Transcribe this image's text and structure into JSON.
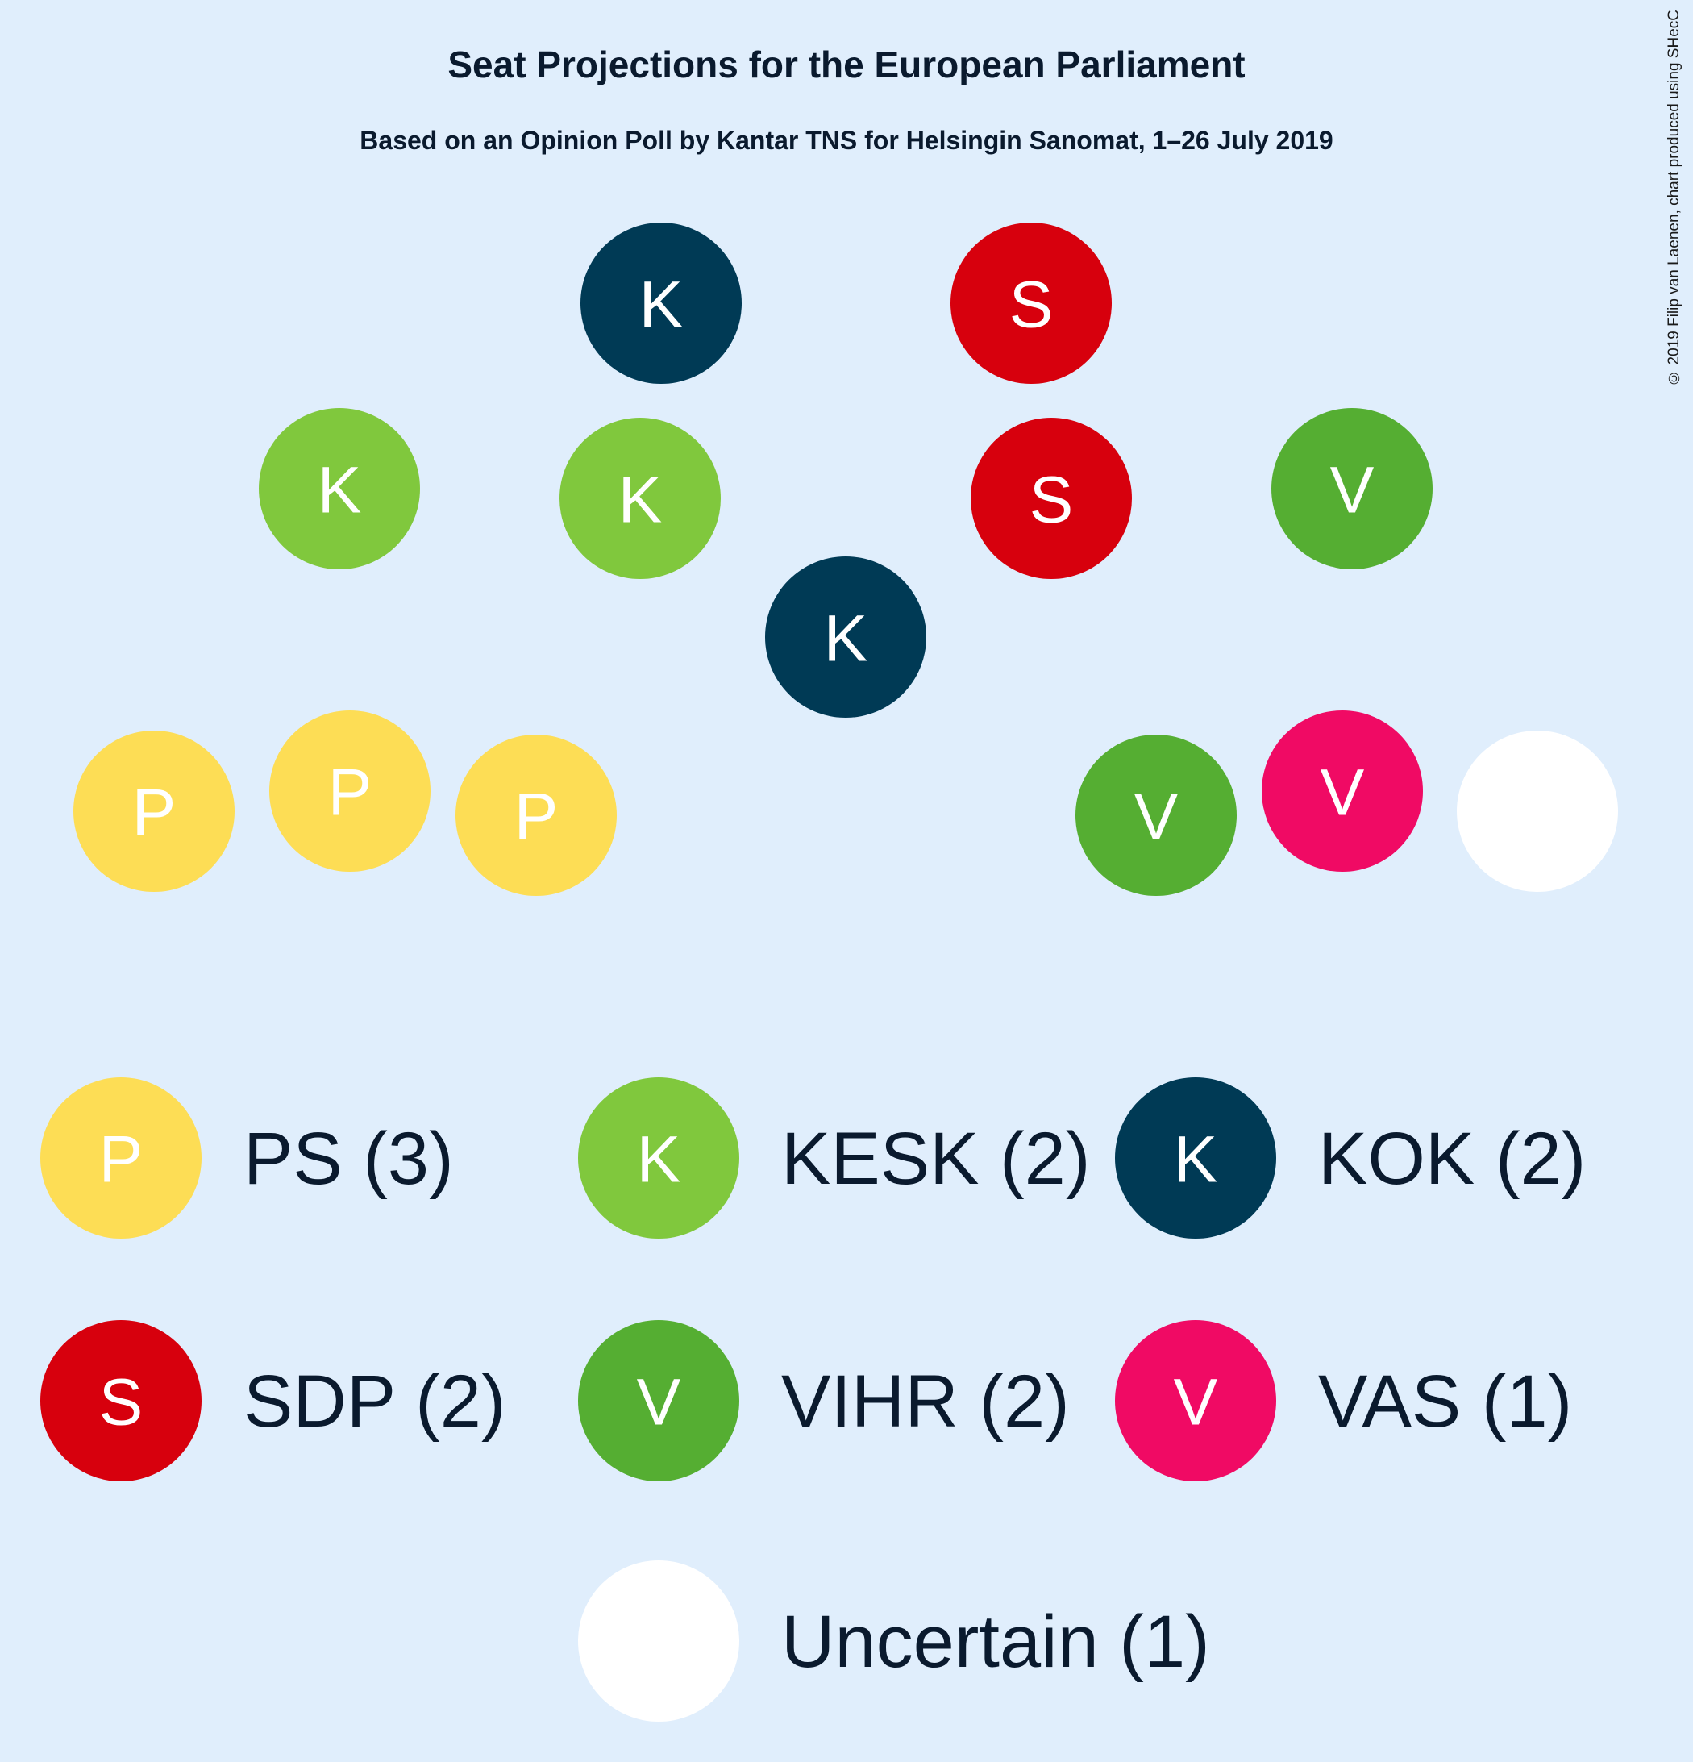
{
  "chart_data": {
    "type": "parliament-seats",
    "title": "Seat Projections for the European Parliament",
    "subtitle": "Based on an Opinion Poll by Kantar TNS for Helsingin Sanomat, 1–26 July 2019",
    "credit": "© 2019 Filip van Laenen, chart produced using SHecC",
    "total_seats": 13,
    "parties": [
      {
        "id": "ps",
        "name": "PS",
        "letter": "P",
        "seats": 3,
        "color": "#fddd55",
        "legend": "PS (3)"
      },
      {
        "id": "kesk",
        "name": "KESK",
        "letter": "K",
        "seats": 2,
        "color": "#80c83d",
        "legend": "KESK (2)"
      },
      {
        "id": "kok",
        "name": "KOK",
        "letter": "K",
        "seats": 2,
        "color": "#003a55",
        "legend": "KOK (2)"
      },
      {
        "id": "sdp",
        "name": "SDP",
        "letter": "S",
        "seats": 2,
        "color": "#d7000d",
        "legend": "SDP (2)"
      },
      {
        "id": "vihr",
        "name": "VIHR",
        "letter": "V",
        "seats": 2,
        "color": "#55ae32",
        "legend": "VIHR (2)"
      },
      {
        "id": "vas",
        "name": "VAS",
        "letter": "V",
        "seats": 1,
        "color": "#f00a64",
        "legend": "VAS (1)"
      },
      {
        "id": "uncertain",
        "name": "Uncertain",
        "letter": "",
        "seats": 1,
        "color": "#ffffff",
        "legend": "Uncertain (1)"
      }
    ],
    "seat_order": [
      "ps",
      "ps",
      "ps",
      "kesk",
      "kesk",
      "kok",
      "kok",
      "sdp",
      "sdp",
      "vihr",
      "vihr",
      "vas",
      "uncertain"
    ]
  }
}
